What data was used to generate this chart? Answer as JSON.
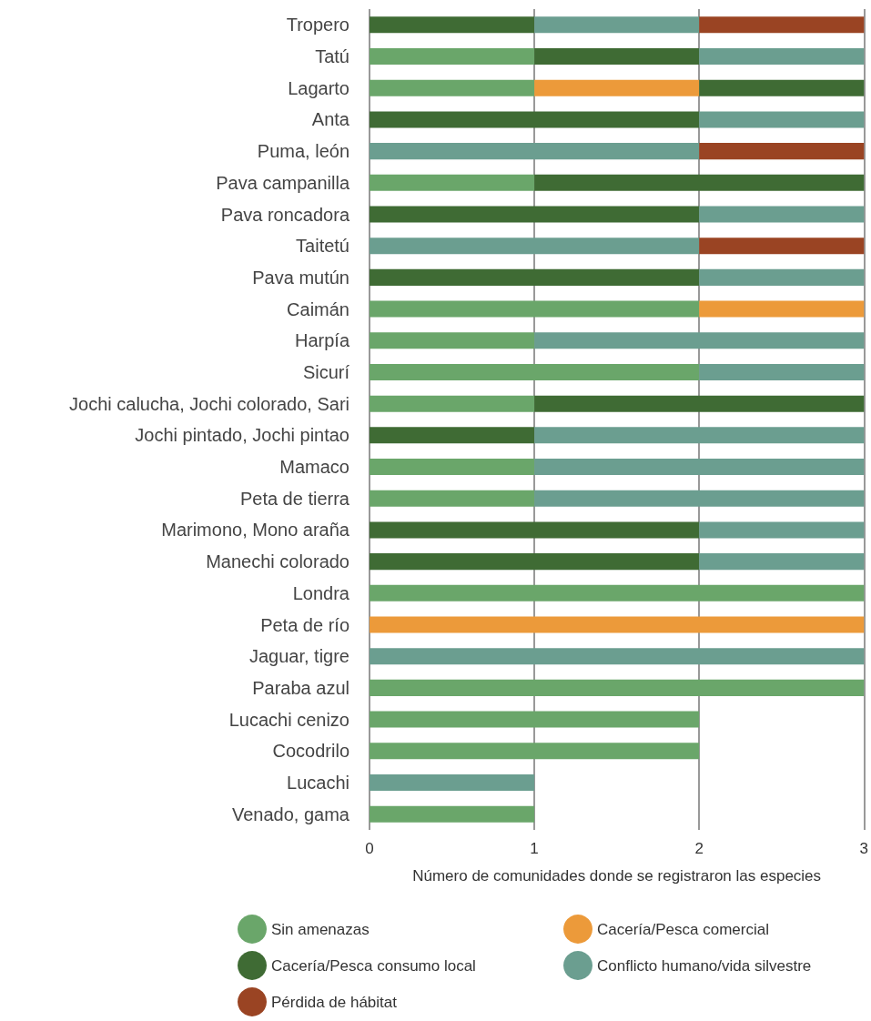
{
  "chart_data": {
    "type": "bar",
    "orientation": "horizontal",
    "stacked": true,
    "categories": [
      "Tropero",
      "Tatú",
      "Lagarto",
      "Anta",
      "Puma, león",
      "Pava campanilla",
      "Pava roncadora",
      "Taitetú",
      "Pava mutún",
      "Caimán",
      "Harpía",
      "Sicurí",
      "Jochi calucha, Jochi colorado, Sari",
      "Jochi pintado, Jochi pintao",
      "Mamaco",
      "Peta de tierra",
      "Marimono, Mono araña",
      "Manechi colorado",
      "Londra",
      "Peta de río",
      "Jaguar, tigre",
      "Paraba azul",
      "Lucachi cenizo",
      "Cocodrilo",
      "Lucachi",
      "Venado, gama"
    ],
    "series": [
      {
        "name": "Sin amenazas",
        "color": "#6aa66a",
        "values": [
          null,
          1,
          1,
          null,
          null,
          1,
          null,
          null,
          null,
          2,
          1,
          2,
          1,
          null,
          1,
          1,
          null,
          null,
          3,
          null,
          null,
          3,
          2,
          2,
          null,
          1
        ]
      },
      {
        "name": "Cacería/Pesca comercial",
        "color": "#ec9a3a",
        "values": [
          null,
          null,
          1,
          null,
          null,
          null,
          null,
          null,
          null,
          1,
          null,
          null,
          null,
          null,
          null,
          null,
          null,
          null,
          null,
          3,
          null,
          null,
          null,
          null,
          null,
          null
        ]
      },
      {
        "name": "Cacería/Pesca consumo local",
        "color": "#3f6b34",
        "values": [
          1,
          1,
          1,
          2,
          null,
          2,
          2,
          null,
          2,
          null,
          null,
          null,
          2,
          1,
          null,
          null,
          2,
          2,
          null,
          null,
          null,
          null,
          null,
          null,
          null,
          null
        ]
      },
      {
        "name": "Conflicto humano/vida silvestre",
        "color": "#6b9e90",
        "values": [
          1,
          1,
          null,
          1,
          2,
          null,
          1,
          2,
          1,
          null,
          2,
          1,
          null,
          2,
          2,
          2,
          1,
          1,
          null,
          null,
          3,
          null,
          null,
          null,
          1,
          null
        ]
      },
      {
        "name": "Pérdida de hábitat",
        "color": "#9a4423",
        "values": [
          1,
          null,
          null,
          null,
          1,
          null,
          null,
          1,
          null,
          null,
          null,
          null,
          null,
          null,
          null,
          null,
          null,
          null,
          null,
          null,
          null,
          null,
          null,
          null,
          null,
          null
        ]
      }
    ],
    "xlabel": "Número de comunidades donde se registraron las especies",
    "xlim": [
      0,
      3
    ],
    "xticks": [
      0,
      1,
      2,
      3
    ],
    "grid": "x",
    "legend": "bottom"
  }
}
